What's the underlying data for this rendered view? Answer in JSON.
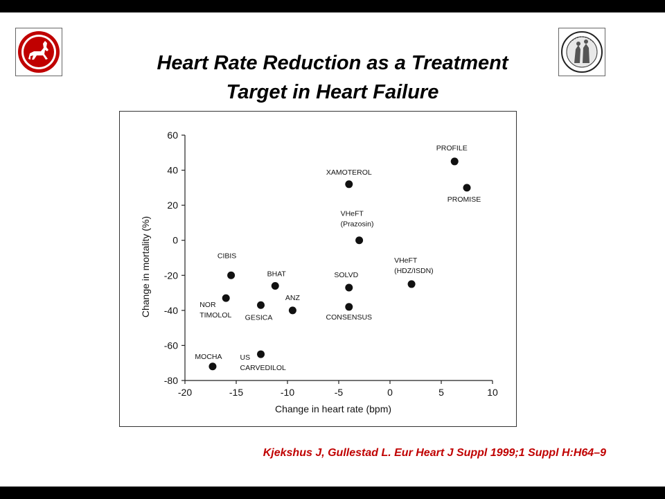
{
  "slide": {
    "title_line1": "Heart Rate Reduction as a Treatment",
    "title_line2": "Target in Heart Failure",
    "citation": "Kjekshus J, Gullestad L. Eur Heart J Suppl 1999;1 Suppl H:H64–9",
    "citation_color": "#c00000",
    "logo_left_color": "#c00000",
    "logo_left_icon": "centaur-seal-icon",
    "logo_right_icon": "university-seal-icon"
  },
  "chart_data": {
    "type": "scatter",
    "xlabel": "Change in heart rate (bpm)",
    "ylabel": "Change in mortality (%)",
    "xlim": [
      -20,
      10
    ],
    "ylim": [
      -80,
      60
    ],
    "xticks": [
      "-20",
      "-15",
      "-10",
      "-5",
      "0",
      "5",
      "10"
    ],
    "yticks": [
      "-80",
      "-60",
      "-40",
      "-20",
      "0",
      "20",
      "40",
      "60"
    ],
    "grid": false,
    "legend": false,
    "points": [
      {
        "label": "PROFILE",
        "x": 6.3,
        "y": 45
      },
      {
        "label": "PROMISE",
        "x": 7.5,
        "y": 30
      },
      {
        "label": "XAMOTEROL",
        "x": -4.0,
        "y": 32
      },
      {
        "label": "VHeFT (Prazosin)",
        "x": -3.0,
        "y": 0
      },
      {
        "label": "VHeFT (HDZ/ISDN)",
        "x": 2.1,
        "y": -25
      },
      {
        "label": "CIBIS",
        "x": -15.5,
        "y": -20
      },
      {
        "label": "BHAT",
        "x": -11.2,
        "y": -26
      },
      {
        "label": "SOLVD",
        "x": -4.0,
        "y": -27
      },
      {
        "label": "NOR TIMOLOL",
        "x": -16.0,
        "y": -33
      },
      {
        "label": "GESICA",
        "x": -12.6,
        "y": -37
      },
      {
        "label": "ANZ",
        "x": -9.5,
        "y": -40
      },
      {
        "label": "CONSENSUS",
        "x": -4.0,
        "y": -38
      },
      {
        "label": "US CARVEDILOL",
        "x": -12.6,
        "y": -65
      },
      {
        "label": "MOCHA",
        "x": -17.3,
        "y": -72
      }
    ]
  }
}
